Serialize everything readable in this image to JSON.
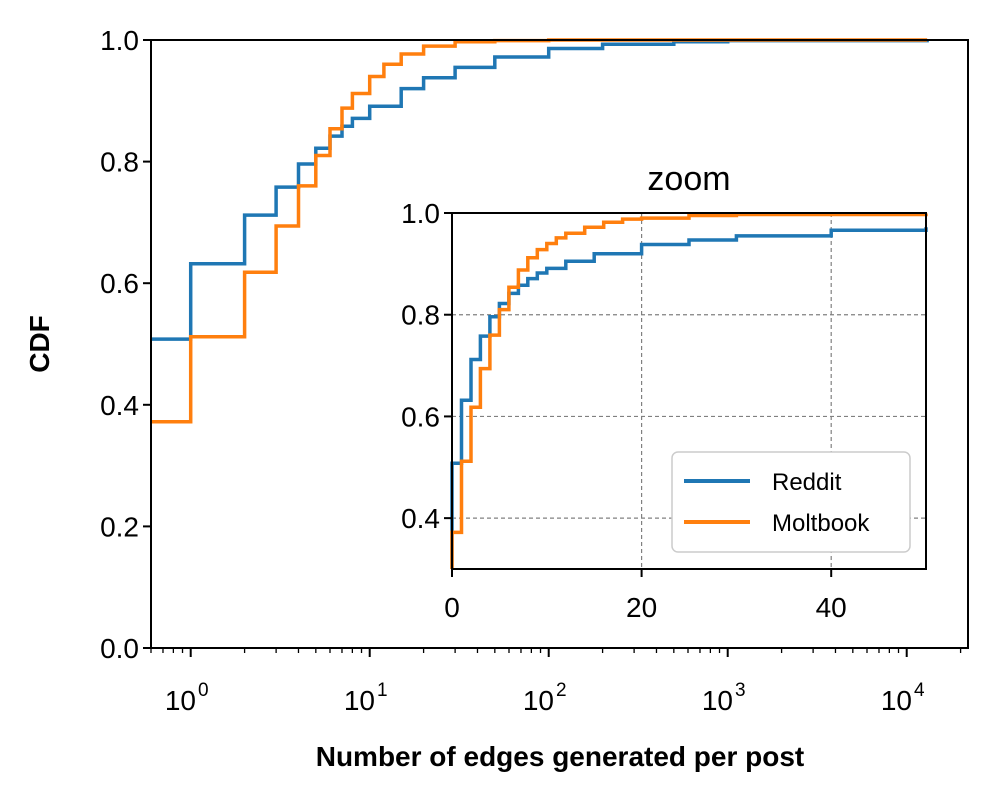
{
  "chart_data": [
    {
      "name": "main",
      "type": "line",
      "step": true,
      "xscale": "log",
      "xlim": [
        0.6,
        22000
      ],
      "ylim": [
        0,
        1.0
      ],
      "xlabel": "Number of edges generated per post",
      "ylabel": "CDF",
      "x_ticks": [
        {
          "base": "10",
          "exp": "0",
          "value": 1
        },
        {
          "base": "10",
          "exp": "1",
          "value": 10
        },
        {
          "base": "10",
          "exp": "2",
          "value": 100
        },
        {
          "base": "10",
          "exp": "3",
          "value": 1000
        },
        {
          "base": "10",
          "exp": "4",
          "value": 10000
        }
      ],
      "y_ticks": [
        "0.0",
        "0.2",
        "0.4",
        "0.6",
        "0.8",
        "1.0"
      ],
      "series": [
        {
          "name": "Reddit",
          "color": "#1f77b4",
          "points": [
            [
              0.6,
              0.508
            ],
            [
              1,
              0.632
            ],
            [
              2,
              0.712
            ],
            [
              3,
              0.758
            ],
            [
              4,
              0.796
            ],
            [
              5,
              0.822
            ],
            [
              6,
              0.842
            ],
            [
              7,
              0.858
            ],
            [
              8,
              0.871
            ],
            [
              10,
              0.891
            ],
            [
              15,
              0.92
            ],
            [
              20,
              0.938
            ],
            [
              30,
              0.955
            ],
            [
              50,
              0.972
            ],
            [
              100,
              0.986
            ],
            [
              200,
              0.993
            ],
            [
              500,
              0.997
            ],
            [
              1000,
              0.999
            ],
            [
              13000,
              1.0
            ]
          ]
        },
        {
          "name": "Moltbook",
          "color": "#ff7f0e",
          "points": [
            [
              0.6,
              0.372
            ],
            [
              1,
              0.512
            ],
            [
              2,
              0.618
            ],
            [
              3,
              0.694
            ],
            [
              4,
              0.76
            ],
            [
              5,
              0.81
            ],
            [
              6,
              0.854
            ],
            [
              7,
              0.888
            ],
            [
              8,
              0.912
            ],
            [
              10,
              0.94
            ],
            [
              12,
              0.96
            ],
            [
              15,
              0.977
            ],
            [
              20,
              0.99
            ],
            [
              30,
              0.997
            ],
            [
              50,
              0.999
            ],
            [
              100,
              1.0
            ],
            [
              13000,
              1.0
            ]
          ]
        }
      ]
    },
    {
      "name": "inset",
      "type": "line",
      "step": true,
      "title": "zoom",
      "xscale": "linear",
      "xlim": [
        0,
        50
      ],
      "ylim": [
        0.3,
        1.0
      ],
      "x_ticks": [
        "0",
        "20",
        "40"
      ],
      "y_ticks": [
        "0.4",
        "0.6",
        "0.8",
        "1.0"
      ],
      "grid": true,
      "legend": {
        "position": "lower-right",
        "entries": [
          "Reddit",
          "Moltbook"
        ]
      },
      "series": [
        {
          "name": "Reddit",
          "color": "#1f77b4",
          "points": [
            [
              0,
              0.3
            ],
            [
              0,
              0.508
            ],
            [
              1,
              0.632
            ],
            [
              2,
              0.712
            ],
            [
              3,
              0.758
            ],
            [
              4,
              0.796
            ],
            [
              5,
              0.822
            ],
            [
              6,
              0.842
            ],
            [
              7,
              0.858
            ],
            [
              8,
              0.871
            ],
            [
              9,
              0.882
            ],
            [
              10,
              0.891
            ],
            [
              12,
              0.905
            ],
            [
              15,
              0.92
            ],
            [
              20,
              0.938
            ],
            [
              25,
              0.947
            ],
            [
              30,
              0.955
            ],
            [
              40,
              0.966
            ],
            [
              50,
              0.972
            ]
          ]
        },
        {
          "name": "Moltbook",
          "color": "#ff7f0e",
          "points": [
            [
              0,
              0.3
            ],
            [
              0,
              0.372
            ],
            [
              1,
              0.512
            ],
            [
              2,
              0.618
            ],
            [
              3,
              0.694
            ],
            [
              4,
              0.76
            ],
            [
              5,
              0.81
            ],
            [
              6,
              0.854
            ],
            [
              7,
              0.888
            ],
            [
              8,
              0.912
            ],
            [
              9,
              0.928
            ],
            [
              10,
              0.94
            ],
            [
              11,
              0.951
            ],
            [
              12,
              0.96
            ],
            [
              14,
              0.972
            ],
            [
              16,
              0.982
            ],
            [
              18,
              0.988
            ],
            [
              20,
              0.99
            ],
            [
              25,
              0.995
            ],
            [
              30,
              0.997
            ],
            [
              50,
              0.999
            ]
          ]
        }
      ]
    }
  ]
}
